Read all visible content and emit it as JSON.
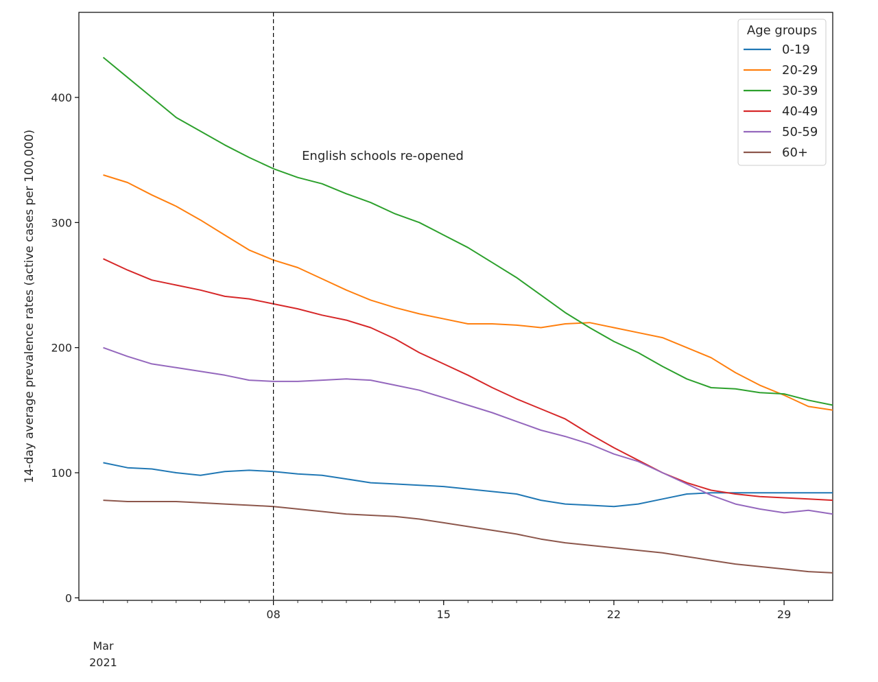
{
  "chart_data": {
    "type": "line",
    "title": "",
    "xlabel": "",
    "ylabel": "14-day average prevalence rates (active cases per 100,000)",
    "x_start": "2021-03-01",
    "x": [
      "2021-03-01",
      "2021-03-02",
      "2021-03-03",
      "2021-03-04",
      "2021-03-05",
      "2021-03-06",
      "2021-03-07",
      "2021-03-08",
      "2021-03-09",
      "2021-03-10",
      "2021-03-11",
      "2021-03-12",
      "2021-03-13",
      "2021-03-14",
      "2021-03-15",
      "2021-03-16",
      "2021-03-17",
      "2021-03-18",
      "2021-03-19",
      "2021-03-20",
      "2021-03-21",
      "2021-03-22",
      "2021-03-23",
      "2021-03-24",
      "2021-03-25",
      "2021-03-26",
      "2021-03-27",
      "2021-03-28",
      "2021-03-29",
      "2021-03-30",
      "2021-03-31"
    ],
    "xlim": [
      "2021-02-28",
      "2021-03-31"
    ],
    "ylim": [
      -2,
      468
    ],
    "yticks": [
      0,
      100,
      200,
      300,
      400
    ],
    "ytick_labels": [
      "0",
      "100",
      "200",
      "300",
      "400"
    ],
    "xticks": [
      "2021-03-08",
      "2021-03-15",
      "2021-03-22",
      "2021-03-29"
    ],
    "xtick_labels": [
      "08",
      "15",
      "22",
      "29"
    ],
    "xminor_ticks": [
      "2021-03-01"
    ],
    "x_month_label": "Mar",
    "x_year_label": "2021",
    "grid": false,
    "legend": {
      "title": "Age groups",
      "placement": "top-right"
    },
    "annotations": [
      {
        "type": "vline",
        "x": "2021-03-08",
        "style": "dashed",
        "color": "#000000"
      },
      {
        "type": "text",
        "text": "English schools re-opened",
        "x": "2021-03-09",
        "y": 350
      }
    ],
    "series": [
      {
        "name": "0-19",
        "color": "#1f77b4",
        "values": [
          108,
          104,
          103,
          100,
          98,
          101,
          102,
          101,
          99,
          98,
          95,
          92,
          91,
          90,
          89,
          87,
          85,
          83,
          78,
          75,
          74,
          73,
          75,
          79,
          83,
          84,
          84,
          84,
          84,
          84,
          84
        ]
      },
      {
        "name": "20-29",
        "color": "#ff7f0e",
        "values": [
          338,
          332,
          322,
          313,
          302,
          290,
          278,
          270,
          264,
          255,
          246,
          238,
          232,
          227,
          223,
          219,
          219,
          218,
          216,
          219,
          220,
          216,
          212,
          208,
          200,
          192,
          180,
          170,
          162,
          153,
          150
        ]
      },
      {
        "name": "30-39",
        "color": "#2ca02c",
        "values": [
          432,
          416,
          400,
          384,
          373,
          362,
          352,
          343,
          336,
          331,
          323,
          316,
          307,
          300,
          290,
          280,
          268,
          256,
          242,
          228,
          216,
          205,
          196,
          185,
          175,
          168,
          167,
          164,
          163,
          158,
          154
        ]
      },
      {
        "name": "40-49",
        "color": "#d62728",
        "values": [
          271,
          262,
          254,
          250,
          246,
          241,
          239,
          235,
          231,
          226,
          222,
          216,
          207,
          196,
          187,
          178,
          168,
          159,
          151,
          143,
          131,
          120,
          110,
          100,
          92,
          86,
          83,
          81,
          80,
          79,
          78
        ]
      },
      {
        "name": "50-59",
        "color": "#9467bd",
        "values": [
          200,
          193,
          187,
          184,
          181,
          178,
          174,
          173,
          173,
          174,
          175,
          174,
          170,
          166,
          160,
          154,
          148,
          141,
          134,
          129,
          123,
          115,
          109,
          100,
          91,
          82,
          75,
          71,
          68,
          70,
          67
        ]
      },
      {
        "name": "60+",
        "color": "#8c564b",
        "values": [
          78,
          77,
          77,
          77,
          76,
          75,
          74,
          73,
          71,
          69,
          67,
          66,
          65,
          63,
          60,
          57,
          54,
          51,
          47,
          44,
          42,
          40,
          38,
          36,
          33,
          30,
          27,
          25,
          23,
          21,
          20
        ]
      }
    ]
  }
}
